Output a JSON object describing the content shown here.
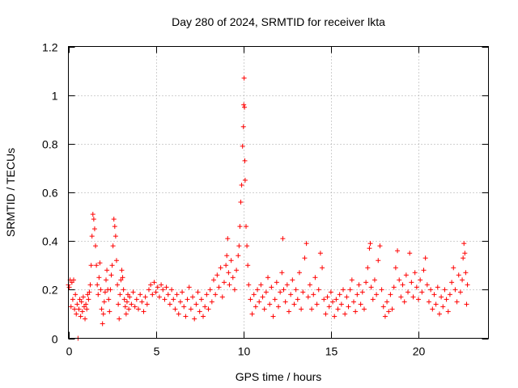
{
  "chart_data": {
    "type": "scatter",
    "title": "Day 280 of 2024, SRMTID for receiver lkta",
    "xlabel": "GPS time / hours",
    "ylabel": "SRMTID / TECUs",
    "xlim": [
      0,
      24
    ],
    "ylim": [
      0,
      1.2
    ],
    "xticks": [
      0,
      5,
      10,
      15,
      20
    ],
    "xtick_labels": [
      "0",
      "5",
      "10",
      "15",
      "20"
    ],
    "yticks": [
      0,
      0.2,
      0.4,
      0.6,
      0.8,
      1.0,
      1.2
    ],
    "ytick_labels": [
      "0",
      "0.2",
      "0.4",
      "0.6",
      "0.8",
      "1",
      "1.2"
    ],
    "grid": true,
    "marker": "+",
    "color": "#ff0000",
    "series": [
      {
        "name": "SRMTID",
        "points": [
          [
            0.0,
            0.22
          ],
          [
            0.05,
            0.21
          ],
          [
            0.1,
            0.24
          ],
          [
            0.15,
            0.13
          ],
          [
            0.2,
            0.23
          ],
          [
            0.25,
            0.16
          ],
          [
            0.3,
            0.24
          ],
          [
            0.35,
            0.12
          ],
          [
            0.4,
            0.18
          ],
          [
            0.45,
            0.1
          ],
          [
            0.5,
            0.14
          ],
          [
            0.55,
            0.0
          ],
          [
            0.6,
            0.12
          ],
          [
            0.65,
            0.16
          ],
          [
            0.7,
            0.09
          ],
          [
            0.75,
            0.15
          ],
          [
            0.8,
            0.11
          ],
          [
            0.85,
            0.17
          ],
          [
            0.9,
            0.13
          ],
          [
            0.95,
            0.08
          ],
          [
            1.0,
            0.14
          ],
          [
            1.05,
            0.12
          ],
          [
            1.1,
            0.18
          ],
          [
            1.15,
            0.16
          ],
          [
            1.2,
            0.19
          ],
          [
            1.25,
            0.22
          ],
          [
            1.3,
            0.3
          ],
          [
            1.35,
            0.42
          ],
          [
            1.4,
            0.51
          ],
          [
            1.45,
            0.49
          ],
          [
            1.5,
            0.45
          ],
          [
            1.55,
            0.38
          ],
          [
            1.6,
            0.3
          ],
          [
            1.65,
            0.22
          ],
          [
            1.7,
            0.18
          ],
          [
            1.75,
            0.25
          ],
          [
            1.8,
            0.31
          ],
          [
            1.85,
            0.2
          ],
          [
            1.9,
            0.12
          ],
          [
            1.95,
            0.06
          ],
          [
            2.0,
            0.1
          ],
          [
            2.05,
            0.15
          ],
          [
            2.1,
            0.19
          ],
          [
            2.15,
            0.24
          ],
          [
            2.2,
            0.28
          ],
          [
            2.25,
            0.2
          ],
          [
            2.3,
            0.16
          ],
          [
            2.35,
            0.11
          ],
          [
            2.4,
            0.2
          ],
          [
            2.45,
            0.26
          ],
          [
            2.5,
            0.3
          ],
          [
            2.55,
            0.38
          ],
          [
            2.6,
            0.49
          ],
          [
            2.65,
            0.46
          ],
          [
            2.7,
            0.42
          ],
          [
            2.75,
            0.32
          ],
          [
            2.8,
            0.22
          ],
          [
            2.85,
            0.14
          ],
          [
            2.9,
            0.08
          ],
          [
            2.95,
            0.18
          ],
          [
            3.0,
            0.24
          ],
          [
            3.05,
            0.28
          ],
          [
            3.1,
            0.25
          ],
          [
            3.15,
            0.2
          ],
          [
            3.2,
            0.16
          ],
          [
            3.25,
            0.13
          ],
          [
            3.3,
            0.1
          ],
          [
            3.35,
            0.15
          ],
          [
            3.4,
            0.18
          ],
          [
            3.45,
            0.12
          ],
          [
            3.5,
            0.17
          ],
          [
            3.6,
            0.14
          ],
          [
            3.7,
            0.19
          ],
          [
            3.8,
            0.13
          ],
          [
            3.9,
            0.16
          ],
          [
            4.0,
            0.12
          ],
          [
            4.1,
            0.18
          ],
          [
            4.2,
            0.15
          ],
          [
            4.3,
            0.11
          ],
          [
            4.4,
            0.17
          ],
          [
            4.5,
            0.14
          ],
          [
            4.6,
            0.2
          ],
          [
            4.7,
            0.22
          ],
          [
            4.8,
            0.18
          ],
          [
            4.9,
            0.23
          ],
          [
            5.0,
            0.19
          ],
          [
            5.1,
            0.21
          ],
          [
            5.2,
            0.17
          ],
          [
            5.3,
            0.22
          ],
          [
            5.4,
            0.2
          ],
          [
            5.5,
            0.16
          ],
          [
            5.6,
            0.21
          ],
          [
            5.7,
            0.18
          ],
          [
            5.8,
            0.14
          ],
          [
            5.9,
            0.2
          ],
          [
            6.0,
            0.16
          ],
          [
            6.1,
            0.12
          ],
          [
            6.2,
            0.18
          ],
          [
            6.3,
            0.1
          ],
          [
            6.4,
            0.15
          ],
          [
            6.5,
            0.19
          ],
          [
            6.6,
            0.13
          ],
          [
            6.7,
            0.09
          ],
          [
            6.8,
            0.16
          ],
          [
            6.9,
            0.21
          ],
          [
            7.0,
            0.12
          ],
          [
            7.1,
            0.17
          ],
          [
            7.2,
            0.08
          ],
          [
            7.3,
            0.14
          ],
          [
            7.4,
            0.19
          ],
          [
            7.5,
            0.11
          ],
          [
            7.6,
            0.16
          ],
          [
            7.7,
            0.09
          ],
          [
            7.8,
            0.13
          ],
          [
            7.9,
            0.18
          ],
          [
            8.0,
            0.12
          ],
          [
            8.1,
            0.2
          ],
          [
            8.2,
            0.15
          ],
          [
            8.3,
            0.24
          ],
          [
            8.4,
            0.18
          ],
          [
            8.5,
            0.26
          ],
          [
            8.6,
            0.21
          ],
          [
            8.7,
            0.29
          ],
          [
            8.8,
            0.17
          ],
          [
            8.9,
            0.23
          ],
          [
            9.0,
            0.3
          ],
          [
            9.05,
            0.34
          ],
          [
            9.1,
            0.41
          ],
          [
            9.15,
            0.27
          ],
          [
            9.2,
            0.22
          ],
          [
            9.3,
            0.32
          ],
          [
            9.4,
            0.25
          ],
          [
            9.5,
            0.2
          ],
          [
            9.6,
            0.28
          ],
          [
            9.7,
            0.34
          ],
          [
            9.75,
            0.38
          ],
          [
            9.8,
            0.46
          ],
          [
            9.85,
            0.56
          ],
          [
            9.9,
            0.63
          ],
          [
            9.95,
            0.79
          ],
          [
            10.0,
            0.87
          ],
          [
            10.02,
            0.96
          ],
          [
            10.04,
            1.07
          ],
          [
            10.06,
            0.95
          ],
          [
            10.08,
            0.73
          ],
          [
            10.1,
            0.65
          ],
          [
            10.15,
            0.46
          ],
          [
            10.2,
            0.38
          ],
          [
            10.25,
            0.3
          ],
          [
            10.3,
            0.22
          ],
          [
            10.4,
            0.16
          ],
          [
            10.5,
            0.1
          ],
          [
            10.6,
            0.18
          ],
          [
            10.7,
            0.13
          ],
          [
            10.8,
            0.2
          ],
          [
            10.9,
            0.15
          ],
          [
            11.0,
            0.22
          ],
          [
            11.1,
            0.17
          ],
          [
            11.2,
            0.12
          ],
          [
            11.3,
            0.19
          ],
          [
            11.4,
            0.25
          ],
          [
            11.5,
            0.14
          ],
          [
            11.6,
            0.21
          ],
          [
            11.7,
            0.09
          ],
          [
            11.8,
            0.16
          ],
          [
            11.9,
            0.23
          ],
          [
            12.0,
            0.13
          ],
          [
            12.1,
            0.19
          ],
          [
            12.2,
            0.27
          ],
          [
            12.25,
            0.41
          ],
          [
            12.3,
            0.2
          ],
          [
            12.4,
            0.15
          ],
          [
            12.5,
            0.22
          ],
          [
            12.6,
            0.11
          ],
          [
            12.7,
            0.18
          ],
          [
            12.8,
            0.24
          ],
          [
            12.9,
            0.14
          ],
          [
            13.0,
            0.2
          ],
          [
            13.1,
            0.16
          ],
          [
            13.2,
            0.27
          ],
          [
            13.3,
            0.12
          ],
          [
            13.4,
            0.19
          ],
          [
            13.5,
            0.33
          ],
          [
            13.6,
            0.39
          ],
          [
            13.7,
            0.17
          ],
          [
            13.8,
            0.22
          ],
          [
            13.9,
            0.12
          ],
          [
            14.0,
            0.18
          ],
          [
            14.1,
            0.25
          ],
          [
            14.2,
            0.14
          ],
          [
            14.3,
            0.2
          ],
          [
            14.4,
            0.35
          ],
          [
            14.5,
            0.29
          ],
          [
            14.6,
            0.16
          ],
          [
            14.7,
            0.1
          ],
          [
            14.8,
            0.17
          ],
          [
            14.9,
            0.13
          ],
          [
            15.0,
            0.19
          ],
          [
            15.1,
            0.15
          ],
          [
            15.2,
            0.09
          ],
          [
            15.3,
            0.16
          ],
          [
            15.4,
            0.12
          ],
          [
            15.5,
            0.18
          ],
          [
            15.6,
            0.14
          ],
          [
            15.7,
            0.2
          ],
          [
            15.8,
            0.1
          ],
          [
            15.9,
            0.17
          ],
          [
            16.0,
            0.13
          ],
          [
            16.1,
            0.2
          ],
          [
            16.2,
            0.24
          ],
          [
            16.3,
            0.15
          ],
          [
            16.4,
            0.11
          ],
          [
            16.5,
            0.18
          ],
          [
            16.6,
            0.22
          ],
          [
            16.7,
            0.14
          ],
          [
            16.8,
            0.19
          ],
          [
            16.9,
            0.12
          ],
          [
            17.0,
            0.23
          ],
          [
            17.1,
            0.29
          ],
          [
            17.2,
            0.37
          ],
          [
            17.25,
            0.39
          ],
          [
            17.3,
            0.21
          ],
          [
            17.4,
            0.16
          ],
          [
            17.5,
            0.24
          ],
          [
            17.6,
            0.18
          ],
          [
            17.7,
            0.32
          ],
          [
            17.8,
            0.38
          ],
          [
            17.9,
            0.2
          ],
          [
            18.0,
            0.13
          ],
          [
            18.1,
            0.09
          ],
          [
            18.2,
            0.15
          ],
          [
            18.3,
            0.11
          ],
          [
            18.4,
            0.18
          ],
          [
            18.5,
            0.12
          ],
          [
            18.6,
            0.21
          ],
          [
            18.7,
            0.29
          ],
          [
            18.8,
            0.36
          ],
          [
            18.9,
            0.24
          ],
          [
            19.0,
            0.17
          ],
          [
            19.1,
            0.22
          ],
          [
            19.2,
            0.15
          ],
          [
            19.3,
            0.26
          ],
          [
            19.4,
            0.19
          ],
          [
            19.5,
            0.35
          ],
          [
            19.6,
            0.23
          ],
          [
            19.7,
            0.17
          ],
          [
            19.8,
            0.27
          ],
          [
            19.9,
            0.21
          ],
          [
            20.0,
            0.16
          ],
          [
            20.1,
            0.24
          ],
          [
            20.2,
            0.19
          ],
          [
            20.3,
            0.28
          ],
          [
            20.4,
            0.33
          ],
          [
            20.5,
            0.22
          ],
          [
            20.6,
            0.15
          ],
          [
            20.7,
            0.2
          ],
          [
            20.8,
            0.12
          ],
          [
            20.9,
            0.18
          ],
          [
            21.0,
            0.14
          ],
          [
            21.1,
            0.21
          ],
          [
            21.2,
            0.1
          ],
          [
            21.3,
            0.17
          ],
          [
            21.4,
            0.13
          ],
          [
            21.5,
            0.2
          ],
          [
            21.6,
            0.16
          ],
          [
            21.7,
            0.11
          ],
          [
            21.8,
            0.18
          ],
          [
            21.9,
            0.23
          ],
          [
            22.0,
            0.29
          ],
          [
            22.1,
            0.2
          ],
          [
            22.2,
            0.15
          ],
          [
            22.3,
            0.26
          ],
          [
            22.4,
            0.19
          ],
          [
            22.5,
            0.24
          ],
          [
            22.55,
            0.33
          ],
          [
            22.6,
            0.39
          ],
          [
            22.65,
            0.35
          ],
          [
            22.7,
            0.27
          ],
          [
            22.75,
            0.14
          ],
          [
            22.8,
            0.22
          ]
        ]
      }
    ]
  }
}
